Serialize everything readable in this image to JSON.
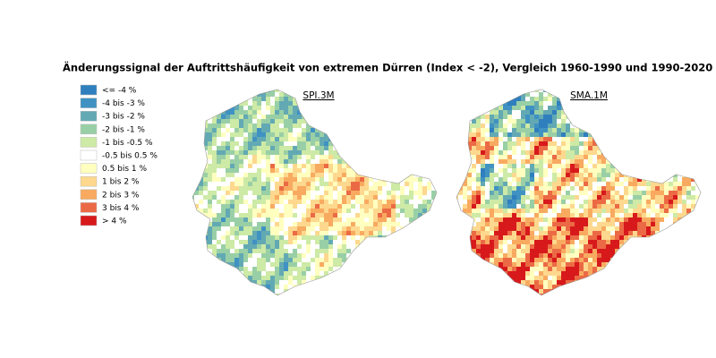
{
  "title": "Änderungssignal der Auftrittshäufigkeit von  extremen Dürren (Index < -2), Vergleich 1960-1990 und 1990-2020",
  "legend": [
    {
      "label": "<= -4 %",
      "color": "#2f7fbe"
    },
    {
      "label": "-4 bis -3 %",
      "color": "#3f92c2"
    },
    {
      "label": "-3 bis -2 %",
      "color": "#62a9b4"
    },
    {
      "label": "-2 bis -1 %",
      "color": "#99cfa6"
    },
    {
      "label": "-1 bis -0.5 %",
      "color": "#cdeaa6"
    },
    {
      "label": "-0.5 bis 0.5 %",
      "color": "#ffffff"
    },
    {
      "label": "0.5 bis 1 %",
      "color": "#ffffc0"
    },
    {
      "label": "1 bis 2 %",
      "color": "#fdd88e"
    },
    {
      "label": "2 bis 3 %",
      "color": "#f8aa60"
    },
    {
      "label": "3 bis 4 %",
      "color": "#eb6a45"
    },
    {
      "label": "> 4 %",
      "color": "#d7191c"
    }
  ],
  "maps": [
    {
      "label": "SPI.3M"
    },
    {
      "label": "SMA.1M"
    }
  ]
}
